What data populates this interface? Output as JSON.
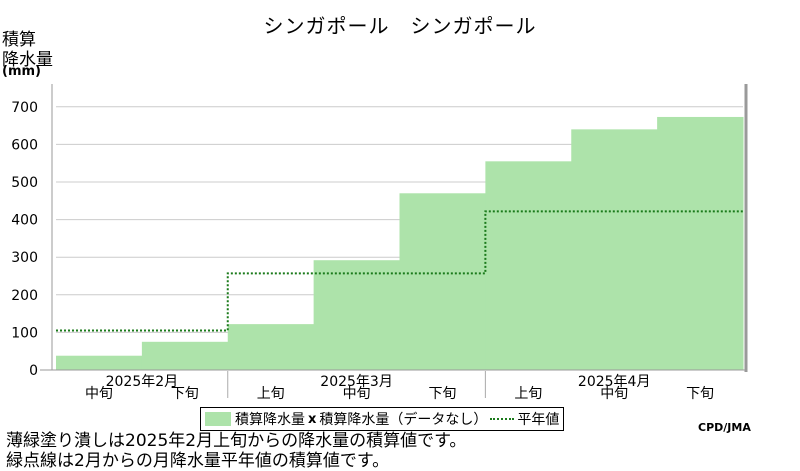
{
  "chart_data": {
    "type": "area",
    "title": "シンガポール　シンガポール",
    "ylabel_lines": [
      "積算",
      "降水量"
    ],
    "yunit": "(mm)",
    "ylim": [
      0,
      750
    ],
    "yticks": [
      0,
      100,
      200,
      300,
      400,
      500,
      600,
      700
    ],
    "periods": [
      "2025年2月中旬",
      "2025年2月下旬",
      "2025年3月上旬",
      "2025年3月中旬",
      "2025年3月下旬",
      "2025年4月上旬",
      "2025年4月中旬",
      "2025年4月下旬"
    ],
    "period_labels": [
      "中旬",
      "下旬",
      "上旬",
      "中旬",
      "下旬",
      "上旬",
      "中旬",
      "下旬"
    ],
    "month_labels": [
      "2025年2月",
      "2025年3月",
      "2025年4月"
    ],
    "series": [
      {
        "name": "積算降水量",
        "values": [
          38,
          75,
          122,
          292,
          470,
          555,
          640,
          673
        ]
      },
      {
        "name": "平年値",
        "values": [
          105,
          105,
          257,
          257,
          257,
          422,
          422,
          422
        ]
      }
    ],
    "legend": {
      "area_label": "積算降水量",
      "missing_label": "積算降水量（データなし）",
      "normal_label": "平年値"
    }
  },
  "credit": "CPD/JMA",
  "notes": [
    "薄緑塗り潰しは2025年2月上旬からの降水量の積算値です。",
    "緑点線は2月からの月降水量平年値の積算値です。"
  ]
}
